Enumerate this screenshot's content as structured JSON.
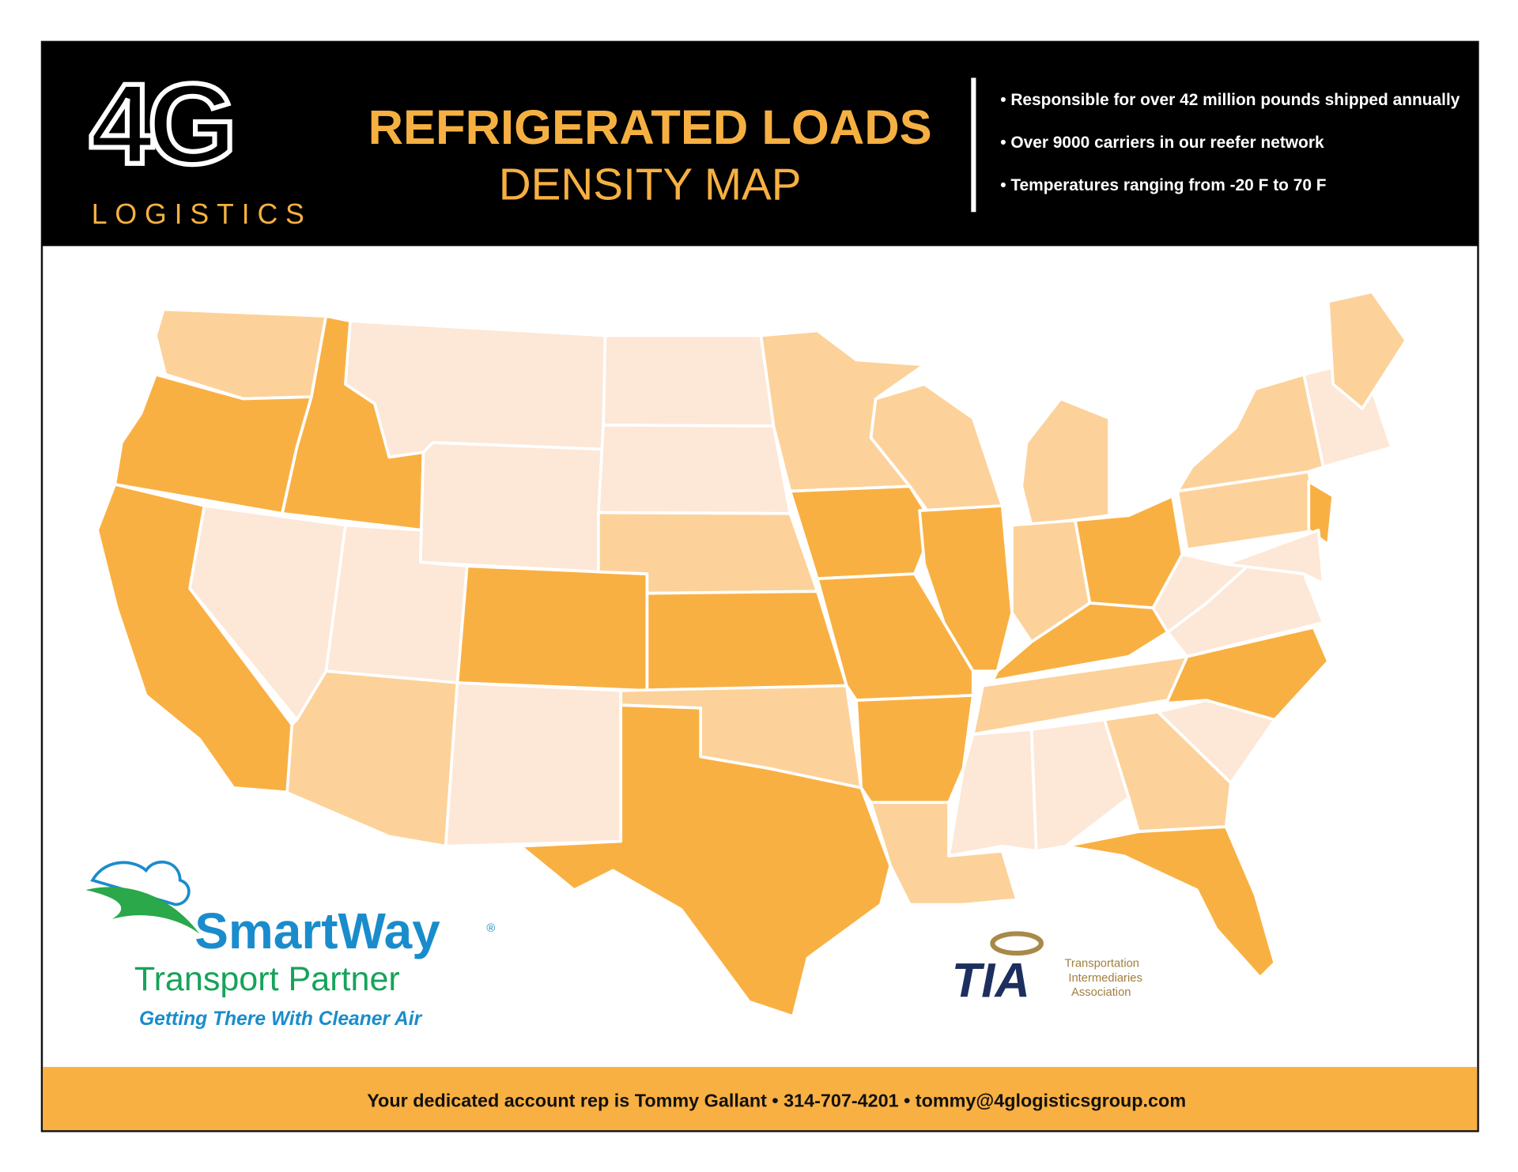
{
  "header": {
    "logo_mark": "4G",
    "logo_word": "LOGISTICS",
    "title_line1": "REFRIGERATED LOADS",
    "title_line2": "DENSITY MAP",
    "bullets": [
      "• Responsible for over 42 million pounds shipped annually",
      "• Over 9000 carriers in our reefer network",
      "• Temperatures ranging from -20 F to 70 F"
    ]
  },
  "smartway": {
    "name": "SmartWay",
    "registered": "®",
    "subtitle": "Transport Partner",
    "tagline": "Getting There With Cleaner Air"
  },
  "tia": {
    "abbr": "TIA",
    "line1": "Transportation",
    "line2": "Intermediaries",
    "line3": "Association"
  },
  "footer": {
    "text": "Your dedicated account rep is Tommy Gallant • 314-707-4201 • tommy@4glogisticsgroup.com"
  }
}
